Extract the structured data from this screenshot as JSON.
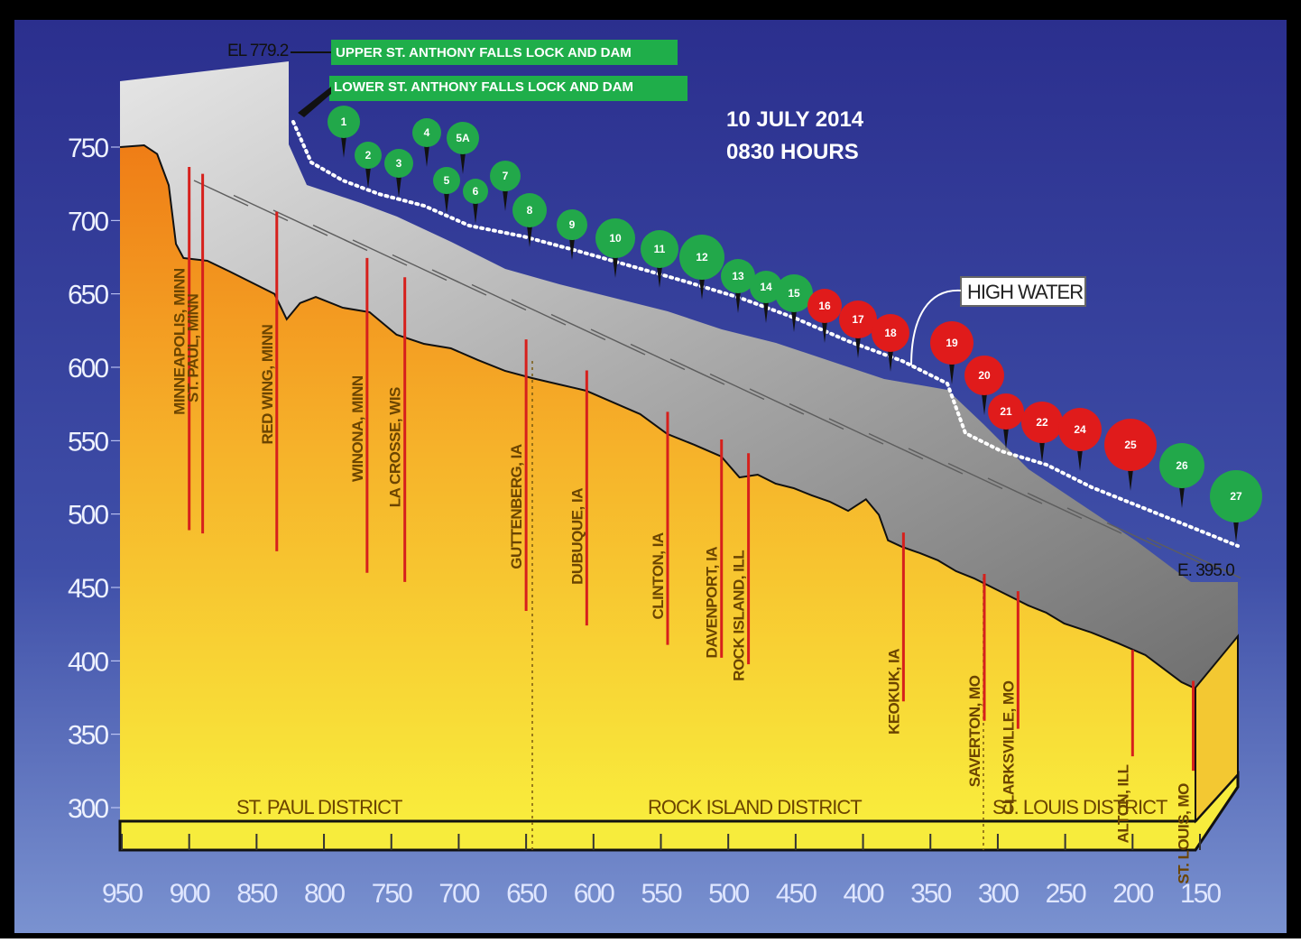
{
  "header": {
    "date": "10 JULY 2014",
    "time": "0830 HOURS",
    "upper_lock": "UPPER ST. ANTHONY FALLS LOCK AND DAM",
    "lower_lock": "LOWER ST. ANTHONY FALLS LOCK AND DAM",
    "top_elevation": "EL 779.2",
    "bottom_elevation": "E. 395.0",
    "high_water": "HIGH WATER"
  },
  "y_axis": {
    "ticks": [
      "750",
      "700",
      "650",
      "600",
      "550",
      "500",
      "450",
      "400",
      "350",
      "300"
    ]
  },
  "x_axis": {
    "ticks": [
      "950",
      "900",
      "850",
      "800",
      "750",
      "700",
      "650",
      "600",
      "550",
      "500",
      "450",
      "400",
      "350",
      "300",
      "250",
      "200",
      "150"
    ]
  },
  "districts": [
    "ST. PAUL DISTRICT",
    "ROCK ISLAND DISTRICT",
    "ST. LOUIS DISTRICT"
  ],
  "cities": [
    {
      "label": "MINNEAPOLIS, MINN",
      "mile": 900
    },
    {
      "label": "ST. PAUL, MINN",
      "mile": 890
    },
    {
      "label": "RED WING, MINN",
      "mile": 835
    },
    {
      "label": "WINONA, MINN",
      "mile": 768
    },
    {
      "label": "LA CROSSE, WIS",
      "mile": 740
    },
    {
      "label": "GUTTENBERG, IA",
      "mile": 650
    },
    {
      "label": "DUBUQUE, IA",
      "mile": 605
    },
    {
      "label": "CLINTON, IA",
      "mile": 545
    },
    {
      "label": "DAVENPORT, IA",
      "mile": 505
    },
    {
      "label": "ROCK ISLAND, ILL",
      "mile": 485
    },
    {
      "label": "KEOKUK, IA",
      "mile": 370
    },
    {
      "label": "SAVERTON, MO",
      "mile": 310
    },
    {
      "label": "CLARKSVILLE, MO",
      "mile": 285
    },
    {
      "label": "ALTON, ILL",
      "mile": 200
    },
    {
      "label": "ST. LOUIS, MO",
      "mile": 155
    }
  ],
  "locks": [
    {
      "id": "1",
      "status": "normal"
    },
    {
      "id": "2",
      "status": "normal"
    },
    {
      "id": "3",
      "status": "normal"
    },
    {
      "id": "4",
      "status": "normal"
    },
    {
      "id": "5A",
      "status": "normal"
    },
    {
      "id": "5",
      "status": "normal"
    },
    {
      "id": "6",
      "status": "normal"
    },
    {
      "id": "7",
      "status": "normal"
    },
    {
      "id": "8",
      "status": "normal"
    },
    {
      "id": "9",
      "status": "normal"
    },
    {
      "id": "10",
      "status": "normal"
    },
    {
      "id": "11",
      "status": "normal"
    },
    {
      "id": "12",
      "status": "normal"
    },
    {
      "id": "13",
      "status": "normal"
    },
    {
      "id": "14",
      "status": "normal"
    },
    {
      "id": "15",
      "status": "normal"
    },
    {
      "id": "16",
      "status": "closed"
    },
    {
      "id": "17",
      "status": "closed"
    },
    {
      "id": "18",
      "status": "closed"
    },
    {
      "id": "19",
      "status": "closed"
    },
    {
      "id": "20",
      "status": "closed"
    },
    {
      "id": "21",
      "status": "closed"
    },
    {
      "id": "22",
      "status": "closed"
    },
    {
      "id": "24",
      "status": "closed"
    },
    {
      "id": "25",
      "status": "closed"
    },
    {
      "id": "26",
      "status": "normal"
    },
    {
      "id": "27",
      "status": "normal"
    }
  ],
  "colors": {
    "normal": "#22a84a",
    "closed": "#e01b1b",
    "background_top": "#2b2f8e",
    "background_bottom": "#6d86c8",
    "ground_top": "#f08a1a",
    "ground_bottom": "#f8ec3a"
  }
}
